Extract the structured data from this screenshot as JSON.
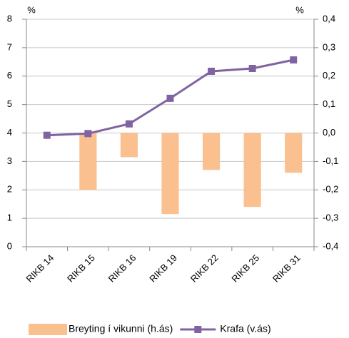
{
  "chart_data": {
    "type": "bar",
    "ylabel": "%",
    "y2label": "%",
    "categories": [
      "RIKB 14",
      "RIKB 15",
      "RIKB 16",
      "RIKB 19",
      "RIKB 22",
      "RIKB 25",
      "RIKB 31"
    ],
    "series": [
      {
        "name": "Breyting í vikunni (h.ás)",
        "type": "bar",
        "axis": "y2",
        "color": "#fac090",
        "values": [
          0,
          -0.2,
          -0.085,
          -0.285,
          -0.13,
          -0.26,
          -0.14
        ]
      },
      {
        "name": "Krafa (v.ás)",
        "type": "line",
        "axis": "y",
        "color": "#8064a2",
        "values": [
          3.92,
          3.98,
          4.32,
          5.22,
          6.17,
          6.27,
          6.57
        ]
      }
    ],
    "ylim": [
      0,
      8
    ],
    "yticks": [
      0,
      1,
      2,
      3,
      4,
      5,
      6,
      7,
      8
    ],
    "y2lim": [
      -0.4,
      0.4
    ],
    "y2ticks": [
      {
        "value": -0.4,
        "label": "-0,4"
      },
      {
        "value": -0.3,
        "label": "-0,3"
      },
      {
        "value": -0.2,
        "label": "-0,2"
      },
      {
        "value": -0.1,
        "label": "-0,1"
      },
      {
        "value": 0,
        "label": "0,0"
      },
      {
        "value": 0.1,
        "label": "0,1"
      },
      {
        "value": 0.2,
        "label": "0,2"
      },
      {
        "value": 0.3,
        "label": "0,3"
      },
      {
        "value": 0.4,
        "label": "0,4"
      }
    ],
    "grid": true,
    "legend": "bottom"
  }
}
